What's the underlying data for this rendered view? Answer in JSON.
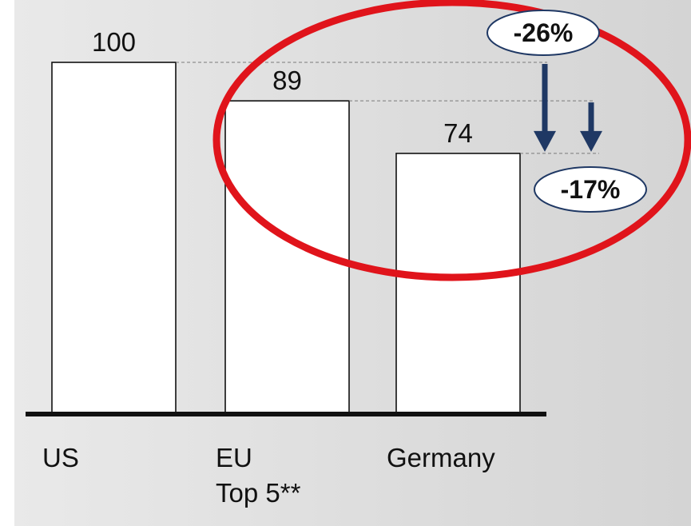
{
  "chart_data": {
    "type": "bar",
    "categories": [
      "US",
      "EU\nTop 5**",
      "Germany"
    ],
    "values": [
      100,
      89,
      74
    ],
    "data_labels": [
      "100",
      "89",
      "74"
    ],
    "title": "",
    "xlabel": "",
    "ylabel": "",
    "ylim": [
      0,
      100
    ],
    "grid": false,
    "annotations": [
      {
        "text": "-26%",
        "from": "US",
        "to": "Germany"
      },
      {
        "text": "-17%",
        "from": "EU\nTop 5**",
        "to": "Germany"
      }
    ],
    "colors": {
      "bar_fill": "#ffffff",
      "bar_stroke": "#111111",
      "arrow": "#1f3864",
      "highlight_ring": "#e0141b",
      "badge_border": "#1f3864",
      "background": "#e2e2e2"
    }
  }
}
